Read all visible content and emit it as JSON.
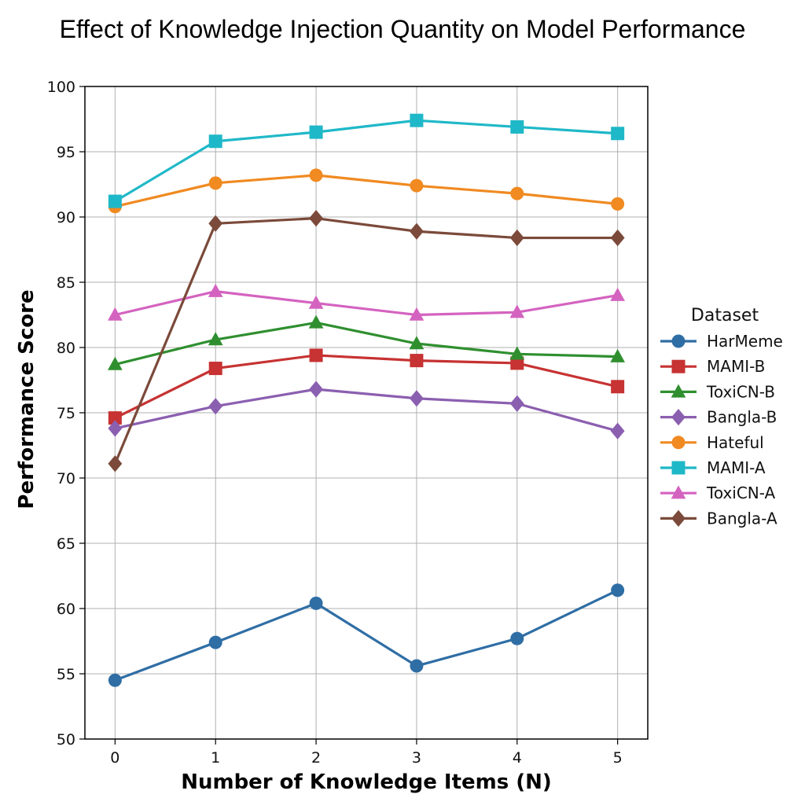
{
  "chart_data": {
    "type": "line",
    "title": "Effect of Knowledge Injection Quantity on Model Performance",
    "xlabel": "Number of Knowledge Items (N)",
    "ylabel": "Performance Score",
    "x": [
      0,
      1,
      2,
      3,
      4,
      5
    ],
    "x_tick_labels": [
      "0",
      "1",
      "2",
      "3",
      "4",
      "5"
    ],
    "xlim": [
      -0.3,
      5.3
    ],
    "ylim": [
      50,
      100
    ],
    "y_ticks": [
      50,
      55,
      60,
      65,
      70,
      75,
      80,
      85,
      90,
      95,
      100
    ],
    "grid": true,
    "legend": {
      "title": "Dataset",
      "placement": "right"
    },
    "series": [
      {
        "name": "HarMeme",
        "color": "#2f6ea5",
        "marker": "circle",
        "values": [
          54.5,
          57.4,
          60.4,
          55.6,
          57.7,
          61.4
        ]
      },
      {
        "name": "MAMI-B",
        "color": "#c73232",
        "marker": "square",
        "values": [
          74.6,
          78.4,
          79.4,
          79.0,
          78.8,
          77.0
        ]
      },
      {
        "name": "ToxiCN-B",
        "color": "#2f8f2f",
        "marker": "triangle",
        "values": [
          78.7,
          80.6,
          81.9,
          80.3,
          79.5,
          79.3
        ]
      },
      {
        "name": "Bangla-B",
        "color": "#8b5fb0",
        "marker": "diamond",
        "values": [
          73.8,
          75.5,
          76.8,
          76.1,
          75.7,
          73.6
        ]
      },
      {
        "name": "Hateful",
        "color": "#f08a21",
        "marker": "circle",
        "values": [
          90.8,
          92.6,
          93.2,
          92.4,
          91.8,
          91.0
        ]
      },
      {
        "name": "MAMI-A",
        "color": "#1fb8c8",
        "marker": "square",
        "values": [
          91.2,
          95.8,
          96.5,
          97.4,
          96.9,
          96.4
        ]
      },
      {
        "name": "ToxiCN-A",
        "color": "#d463c0",
        "marker": "triangle",
        "values": [
          82.5,
          84.3,
          83.4,
          82.5,
          82.7,
          84.0
        ]
      },
      {
        "name": "Bangla-A",
        "color": "#7b4a3a",
        "marker": "diamond",
        "values": [
          71.1,
          89.5,
          89.9,
          88.9,
          88.4,
          88.4
        ]
      }
    ]
  }
}
